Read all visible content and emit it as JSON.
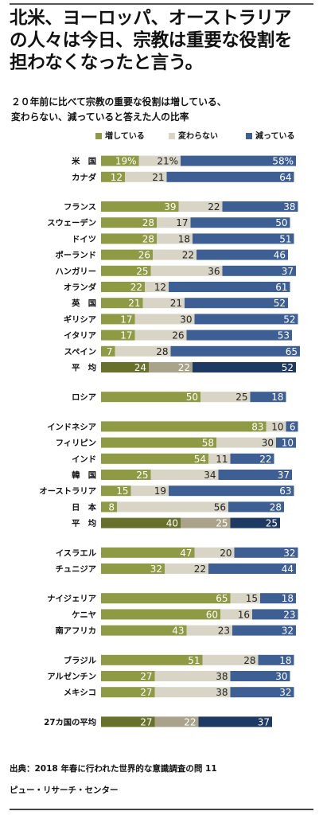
{
  "header": {
    "title_lines": [
      "北米、ヨーロッパ、オーストラリア",
      "の人々は今日、宗教は重要な役割を",
      "担わなくなったと言う。"
    ],
    "subtitle_lines": [
      "２０年前に比べて宗教の重要な役割は増している、",
      "変わらない、減っていると答えた人の比率"
    ]
  },
  "colors": {
    "increase": "#8f9a45",
    "same": "#d8d5c6",
    "decrease": "#3e5f94",
    "avg_increase": "#67712c",
    "avg_same": "#a8a38a",
    "avg_decrease": "#1e3a62"
  },
  "legend": [
    "増している",
    "変わらない",
    "減っている"
  ],
  "chart_data": {
    "type": "bar",
    "stacked": true,
    "orientation": "horizontal",
    "series": [
      {
        "name": "増している"
      },
      {
        "name": "変わらない"
      },
      {
        "name": "減っている"
      }
    ],
    "groups": [
      {
        "rows": [
          {
            "label": "米　国",
            "values": [
              19,
              21,
              58
            ],
            "value_labels": [
              "19%",
              "21%",
              "58%"
            ]
          },
          {
            "label": "カナダ",
            "values": [
              12,
              21,
              64
            ]
          }
        ]
      },
      {
        "rows": [
          {
            "label": "フランス",
            "values": [
              39,
              22,
              38
            ]
          },
          {
            "label": "スウェーデン",
            "values": [
              28,
              17,
              50
            ]
          },
          {
            "label": "ドイツ",
            "values": [
              28,
              18,
              51
            ]
          },
          {
            "label": "ポーランド",
            "values": [
              26,
              22,
              46
            ]
          },
          {
            "label": "ハンガリー",
            "values": [
              25,
              36,
              37
            ]
          },
          {
            "label": "オランダ",
            "values": [
              22,
              12,
              61
            ]
          },
          {
            "label": "英　国",
            "values": [
              21,
              21,
              52
            ]
          },
          {
            "label": "ギリシア",
            "values": [
              17,
              30,
              52
            ]
          },
          {
            "label": "イタリア",
            "values": [
              17,
              26,
              53
            ]
          },
          {
            "label": "スペイン",
            "values": [
              7,
              28,
              65
            ]
          },
          {
            "label": "平　均",
            "values": [
              24,
              22,
              52
            ],
            "average": true
          }
        ]
      },
      {
        "rows": [
          {
            "label": "ロシア",
            "values": [
              50,
              25,
              18
            ]
          }
        ]
      },
      {
        "rows": [
          {
            "label": "インドネシア",
            "values": [
              83,
              10,
              6
            ]
          },
          {
            "label": "フィリピン",
            "values": [
              58,
              30,
              10
            ]
          },
          {
            "label": "インド",
            "values": [
              54,
              11,
              22
            ]
          },
          {
            "label": "韓　国",
            "values": [
              25,
              34,
              37
            ]
          },
          {
            "label": "オーストラリア",
            "values": [
              15,
              19,
              63
            ]
          },
          {
            "label": "日　本",
            "values": [
              8,
              56,
              28
            ]
          },
          {
            "label": "平　均",
            "values": [
              40,
              25,
              25
            ],
            "average": true
          }
        ]
      },
      {
        "rows": [
          {
            "label": "イスラエル",
            "values": [
              47,
              20,
              32
            ]
          },
          {
            "label": "チュニジア",
            "values": [
              32,
              22,
              44
            ]
          }
        ]
      },
      {
        "rows": [
          {
            "label": "ナイジェリア",
            "values": [
              65,
              15,
              18
            ]
          },
          {
            "label": "ケニヤ",
            "values": [
              60,
              16,
              23
            ]
          },
          {
            "label": "南アフリカ",
            "values": [
              43,
              23,
              32
            ]
          }
        ]
      },
      {
        "rows": [
          {
            "label": "ブラジル",
            "values": [
              51,
              28,
              18
            ]
          },
          {
            "label": "アルゼンチン",
            "values": [
              27,
              38,
              30
            ]
          },
          {
            "label": "メキシコ",
            "values": [
              27,
              38,
              32
            ]
          }
        ]
      },
      {
        "rows": [
          {
            "label": "27カ国の平均",
            "values": [
              27,
              22,
              37
            ],
            "average": true
          }
        ]
      }
    ]
  },
  "footer": {
    "source": "出典：2018 年春に行われた世界的な意識調査の問 11",
    "publisher": "ピュー・リサーチ・センター"
  }
}
